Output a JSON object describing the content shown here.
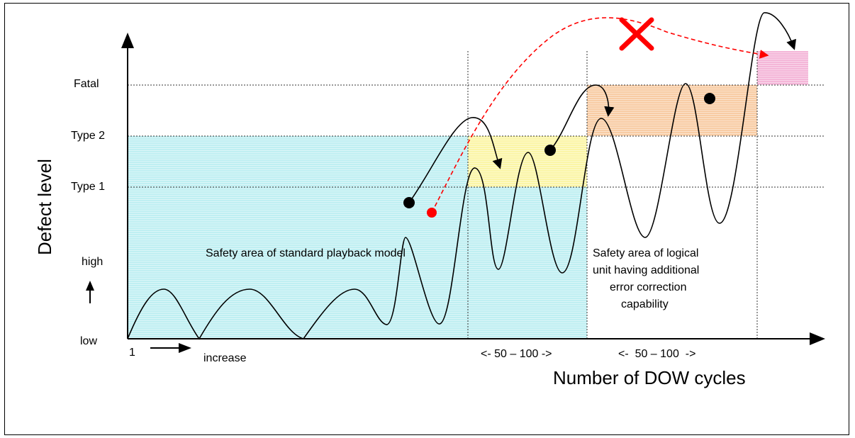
{
  "y_axis": {
    "title": "Defect level",
    "levels": [
      "Fatal",
      "Type 2",
      "Type 1"
    ],
    "high_label": "high",
    "low_label": "low"
  },
  "x_axis": {
    "title": "Number of DOW cycles",
    "start_label": "1",
    "increase_label": "increase",
    "interval_1": "<- 50 – 100 ->",
    "interval_2": "<-  50 – 100  ->"
  },
  "areas": {
    "standard": "Safety area of standard playback model",
    "logical_line1": "Safety area of logical",
    "logical_line2": "unit having additional",
    "logical_line3": "error correction",
    "logical_line4": "capability"
  },
  "colors": {
    "cyan_area": "#bfeff2",
    "yellow_area": "#fbf5a6",
    "orange_area": "#f8cca4",
    "pink_area": "#f4b6d8",
    "dashed_path": "#ff0000",
    "cross": "#ff0000"
  },
  "icons": [
    "arrow-up-icon",
    "arrow-right-icon",
    "cross-icon"
  ]
}
